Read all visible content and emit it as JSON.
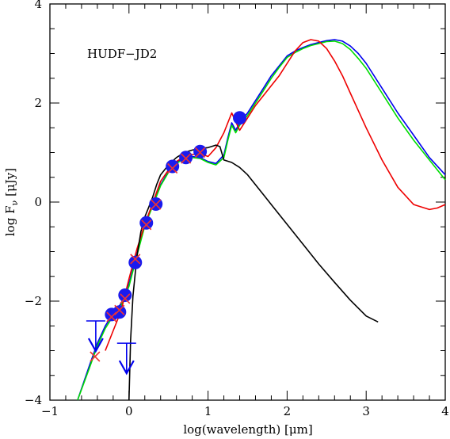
{
  "chart_data": {
    "type": "scatter",
    "annotation": "HUDF−JD2",
    "xlabel": "log(wavelength) [μm]",
    "ylabel": "log F",
    "ylabel_sub": "ν",
    "ylabel_unit": "[μJy]",
    "xlim": [
      -1,
      4
    ],
    "ylim": [
      -4,
      4
    ],
    "xticks": [
      -1,
      0,
      1,
      2,
      3,
      4
    ],
    "xtick_labels": [
      "−1",
      "0",
      "1",
      "2",
      "3",
      "4"
    ],
    "yticks": [
      -4,
      -2,
      0,
      2,
      4
    ],
    "ytick_labels": [
      "−4",
      "−2",
      "0",
      "2",
      "4"
    ],
    "grid": false,
    "colors": {
      "blue": "#0000ee",
      "green": "#00dd00",
      "red": "#ee0000",
      "black": "#000000",
      "marker": "#1a1aee",
      "cross": "#ee3333"
    },
    "observed_points": {
      "x": [
        -0.22,
        -0.12,
        -0.05,
        0.08,
        0.22,
        0.34,
        0.55,
        0.72,
        0.9,
        1.4
      ],
      "y": [
        -2.27,
        -2.22,
        -1.88,
        -1.22,
        -0.42,
        -0.04,
        0.72,
        0.9,
        1.02,
        1.7
      ]
    },
    "upper_limits": {
      "x": [
        -0.42,
        -0.03
      ],
      "y": [
        -2.4,
        -2.85
      ]
    },
    "model_points": {
      "x": [
        -0.43,
        -0.22,
        -0.12,
        -0.05,
        0.08,
        0.22,
        0.34,
        0.55,
        0.72,
        0.9
      ],
      "y": [
        -3.12,
        -2.32,
        -2.18,
        -1.95,
        -1.15,
        -0.46,
        -0.05,
        0.68,
        0.88,
        1.0
      ]
    },
    "series": [
      {
        "color": "blue",
        "x": [
          -0.65,
          -0.5,
          -0.4,
          -0.3,
          -0.2,
          -0.1,
          0.0,
          0.1,
          0.2,
          0.3,
          0.4,
          0.5,
          0.6,
          0.7,
          0.8,
          0.9,
          1.0,
          1.1,
          1.2,
          1.25,
          1.3,
          1.35,
          1.4,
          1.5,
          1.6,
          1.7,
          1.8,
          1.9,
          2.0,
          2.1,
          2.2,
          2.3,
          2.4,
          2.5,
          2.6,
          2.7,
          2.8,
          2.9,
          3.0,
          3.2,
          3.4,
          3.6,
          3.8,
          4.0
        ],
        "y": [
          -4.0,
          -3.3,
          -2.85,
          -2.5,
          -2.25,
          -2.05,
          -1.65,
          -1.05,
          -0.45,
          -0.05,
          0.35,
          0.62,
          0.8,
          0.9,
          0.92,
          0.9,
          0.82,
          0.78,
          0.95,
          1.3,
          1.6,
          1.45,
          1.6,
          1.8,
          2.05,
          2.3,
          2.55,
          2.75,
          2.95,
          3.05,
          3.12,
          3.18,
          3.22,
          3.26,
          3.28,
          3.25,
          3.15,
          3.0,
          2.8,
          2.3,
          1.8,
          1.35,
          0.9,
          0.55
        ]
      },
      {
        "color": "green",
        "x": [
          -0.65,
          -0.5,
          -0.4,
          -0.3,
          -0.2,
          -0.1,
          0.0,
          0.1,
          0.2,
          0.3,
          0.4,
          0.5,
          0.6,
          0.7,
          0.8,
          0.9,
          1.0,
          1.1,
          1.2,
          1.25,
          1.3,
          1.35,
          1.4,
          1.5,
          1.6,
          1.7,
          1.8,
          1.9,
          2.0,
          2.1,
          2.2,
          2.3,
          2.4,
          2.5,
          2.6,
          2.7,
          2.8,
          2.9,
          3.0,
          3.2,
          3.4,
          3.6,
          3.8,
          4.0
        ],
        "y": [
          -4.0,
          -3.35,
          -2.9,
          -2.55,
          -2.3,
          -2.1,
          -1.7,
          -1.08,
          -0.48,
          -0.08,
          0.33,
          0.6,
          0.78,
          0.88,
          0.9,
          0.88,
          0.8,
          0.75,
          0.9,
          1.25,
          1.55,
          1.4,
          1.55,
          1.75,
          2.0,
          2.25,
          2.5,
          2.72,
          2.92,
          3.02,
          3.1,
          3.16,
          3.2,
          3.24,
          3.25,
          3.2,
          3.08,
          2.9,
          2.7,
          2.2,
          1.7,
          1.25,
          0.85,
          0.45
        ]
      },
      {
        "color": "red",
        "x": [
          -0.3,
          -0.2,
          -0.1,
          0.0,
          0.1,
          0.2,
          0.3,
          0.4,
          0.5,
          0.6,
          0.7,
          0.8,
          0.9,
          1.0,
          1.1,
          1.2,
          1.3,
          1.4,
          1.5,
          1.6,
          1.7,
          1.8,
          1.9,
          2.0,
          2.1,
          2.2,
          2.3,
          2.4,
          2.5,
          2.6,
          2.7,
          2.8,
          2.9,
          3.0,
          3.2,
          3.4,
          3.6,
          3.8,
          3.9,
          4.0
        ],
        "y": [
          -3.0,
          -2.6,
          -2.2,
          -1.55,
          -0.95,
          -0.45,
          -0.02,
          0.42,
          0.65,
          0.82,
          0.92,
          0.96,
          0.98,
          0.92,
          1.1,
          1.4,
          1.8,
          1.45,
          1.7,
          1.95,
          2.15,
          2.35,
          2.55,
          2.8,
          3.05,
          3.22,
          3.28,
          3.25,
          3.1,
          2.85,
          2.55,
          2.2,
          1.85,
          1.5,
          0.85,
          0.3,
          -0.05,
          -0.15,
          -0.12,
          -0.05
        ]
      },
      {
        "color": "black",
        "x": [
          0.0,
          0.02,
          0.05,
          0.1,
          0.15,
          0.2,
          0.25,
          0.3,
          0.35,
          0.4,
          0.5,
          0.6,
          0.7,
          0.8,
          0.9,
          1.0,
          1.1,
          1.15,
          1.2,
          1.3,
          1.4,
          1.5,
          1.6,
          1.7,
          1.8,
          1.9,
          2.0,
          2.2,
          2.4,
          2.6,
          2.8,
          3.0,
          3.15
        ],
        "y": [
          -4.0,
          -2.8,
          -1.9,
          -1.1,
          -0.6,
          -0.3,
          -0.1,
          0.1,
          0.35,
          0.55,
          0.75,
          0.9,
          1.0,
          1.05,
          1.08,
          1.1,
          1.15,
          1.12,
          0.85,
          0.8,
          0.7,
          0.55,
          0.35,
          0.15,
          -0.05,
          -0.25,
          -0.45,
          -0.85,
          -1.25,
          -1.62,
          -1.98,
          -2.3,
          -2.42
        ]
      }
    ]
  }
}
